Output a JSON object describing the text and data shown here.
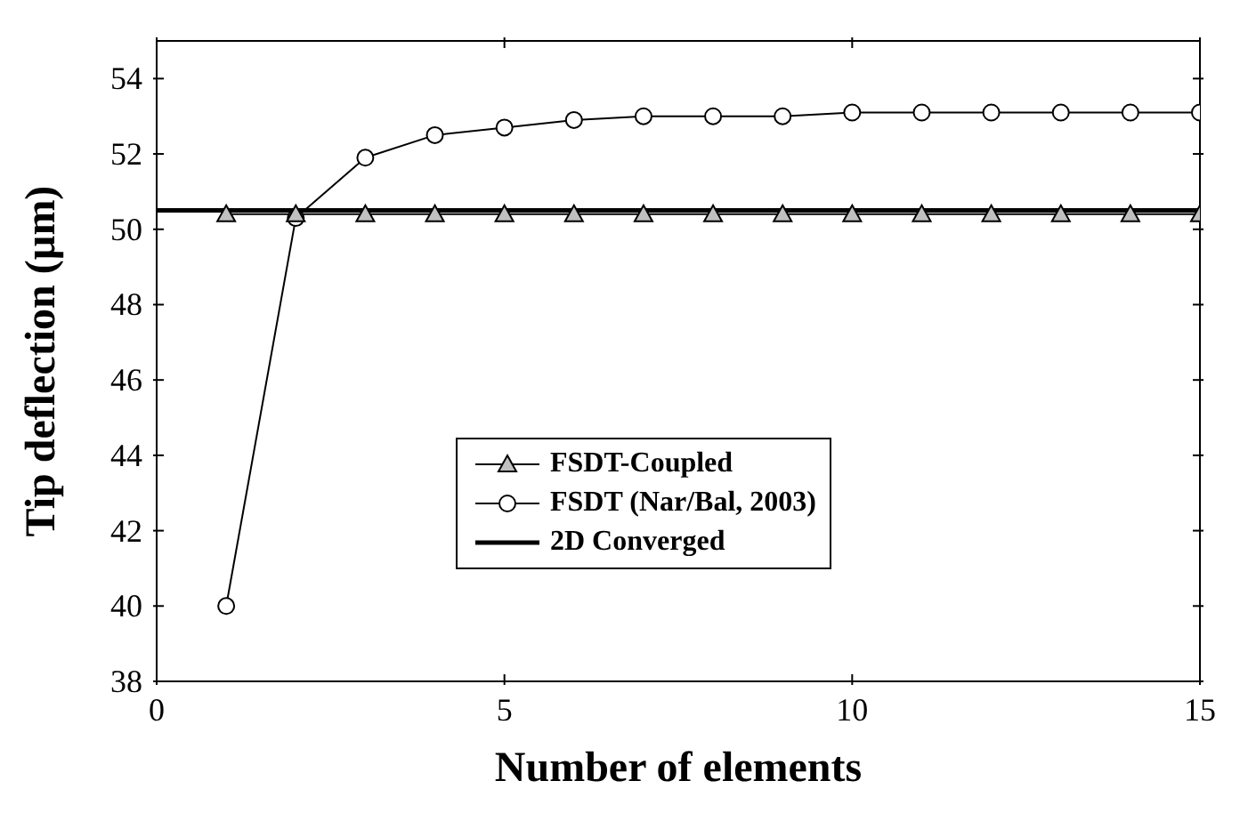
{
  "chart_data": {
    "type": "line",
    "xlabel": "Number of elements",
    "ylabel": "Tip deflection (µm)",
    "xlim": [
      0,
      15
    ],
    "xticks": [
      0,
      5,
      10,
      15
    ],
    "ylim": [
      38,
      55
    ],
    "yticks": [
      38,
      40,
      42,
      44,
      46,
      48,
      50,
      52,
      54
    ],
    "grid": false,
    "legend": "bottom right",
    "series": [
      {
        "name": "FSDT-Coupled",
        "color": "#000000",
        "marker": "triangle",
        "x": [
          1,
          2,
          3,
          4,
          5,
          6,
          7,
          8,
          9,
          10,
          11,
          12,
          13,
          14,
          15
        ],
        "values": [
          50.4,
          50.4,
          50.4,
          50.4,
          50.4,
          50.4,
          50.4,
          50.4,
          50.4,
          50.4,
          50.4,
          50.4,
          50.4,
          50.4,
          50.4
        ]
      },
      {
        "name": "FSDT (Nar/Bal, 2003)",
        "color": "#000000",
        "marker": "circle",
        "x": [
          1,
          2,
          3,
          4,
          5,
          6,
          7,
          8,
          9,
          10,
          11,
          12,
          13,
          14,
          15
        ],
        "values": [
          40,
          50.3,
          51.9,
          52.5,
          52.7,
          52.9,
          53.0,
          53.0,
          53.0,
          53.1,
          53.1,
          53.1,
          53.1,
          53.1,
          53.1
        ]
      },
      {
        "name": "2D Converged",
        "color": "#000000",
        "marker": "none",
        "x": [
          0,
          15
        ],
        "values": [
          50.5,
          50.5
        ]
      }
    ]
  }
}
